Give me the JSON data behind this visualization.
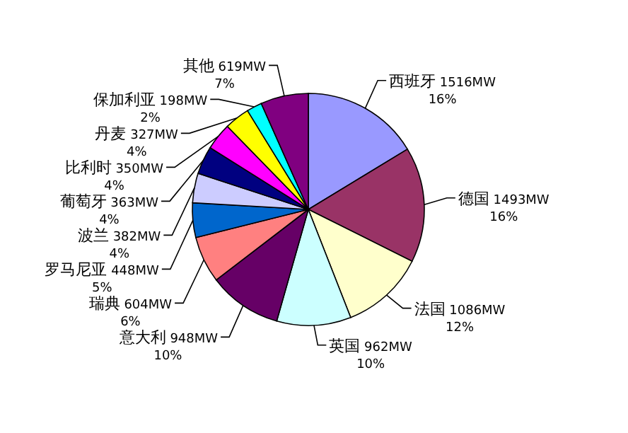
{
  "chart_data": {
    "type": "pie",
    "categories": [
      "西班牙",
      "德国",
      "法国",
      "英国",
      "意大利",
      "瑞典",
      "罗马尼亚",
      "波兰",
      "葡萄牙",
      "比利时",
      "丹麦",
      "保加利亚",
      "其他"
    ],
    "values": [
      1516,
      1493,
      1086,
      962,
      948,
      604,
      448,
      382,
      363,
      350,
      327,
      198,
      619
    ],
    "value_labels": [
      "1516MW 16%",
      "1493MW 16%",
      "1086MW 12%",
      "962MW 10%",
      "948MW 10%",
      "604MW 6%",
      "448MW 5%",
      "382MW 4%",
      "363MW 4%",
      "350MW 4%",
      "327MW 4%",
      "198MW 2%",
      "619MW 7%"
    ],
    "colors": [
      "#9999ff",
      "#993366",
      "#ffffcc",
      "#ccffff",
      "#660066",
      "#ff8080",
      "#0066cc",
      "#ccccff",
      "#000080",
      "#ff00ff",
      "#ffff00",
      "#00ffff",
      "#800080"
    ]
  }
}
